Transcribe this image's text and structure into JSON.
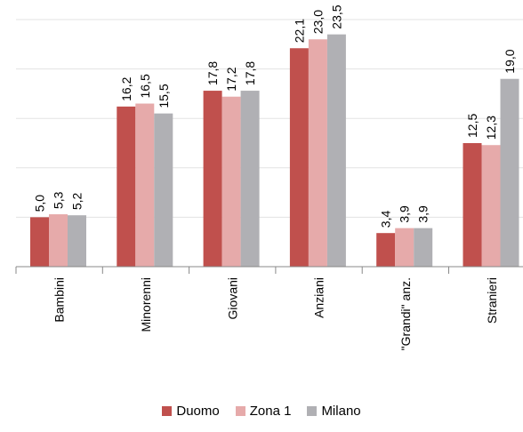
{
  "chart_data": {
    "type": "bar",
    "categories": [
      "Bambini",
      "Minorenni",
      "Giovani",
      "Anziani",
      "\"Grandi\" anz.",
      "Stranieri"
    ],
    "series": [
      {
        "name": "Duomo",
        "color": "#c0504d",
        "values": [
          5.0,
          16.2,
          17.8,
          22.1,
          3.4,
          12.5
        ]
      },
      {
        "name": "Zona 1",
        "color": "#e6aaaa",
        "values": [
          5.3,
          16.5,
          17.2,
          23.0,
          3.9,
          12.3
        ]
      },
      {
        "name": "Milano",
        "color": "#b0b0b4",
        "values": [
          5.2,
          15.5,
          17.8,
          23.5,
          3.9,
          19.0
        ]
      }
    ],
    "value_labels": [
      [
        "5,0",
        "16,2",
        "17,8",
        "22,1",
        "3,4",
        "12,5"
      ],
      [
        "5,3",
        "16,5",
        "17,2",
        "23,0",
        "3,9",
        "12,3"
      ],
      [
        "5,2",
        "15,5",
        "17,8",
        "23,5",
        "3,9",
        "19,0"
      ]
    ],
    "ylim": [
      0,
      25
    ],
    "grid": true,
    "legend_position": "bottom"
  }
}
